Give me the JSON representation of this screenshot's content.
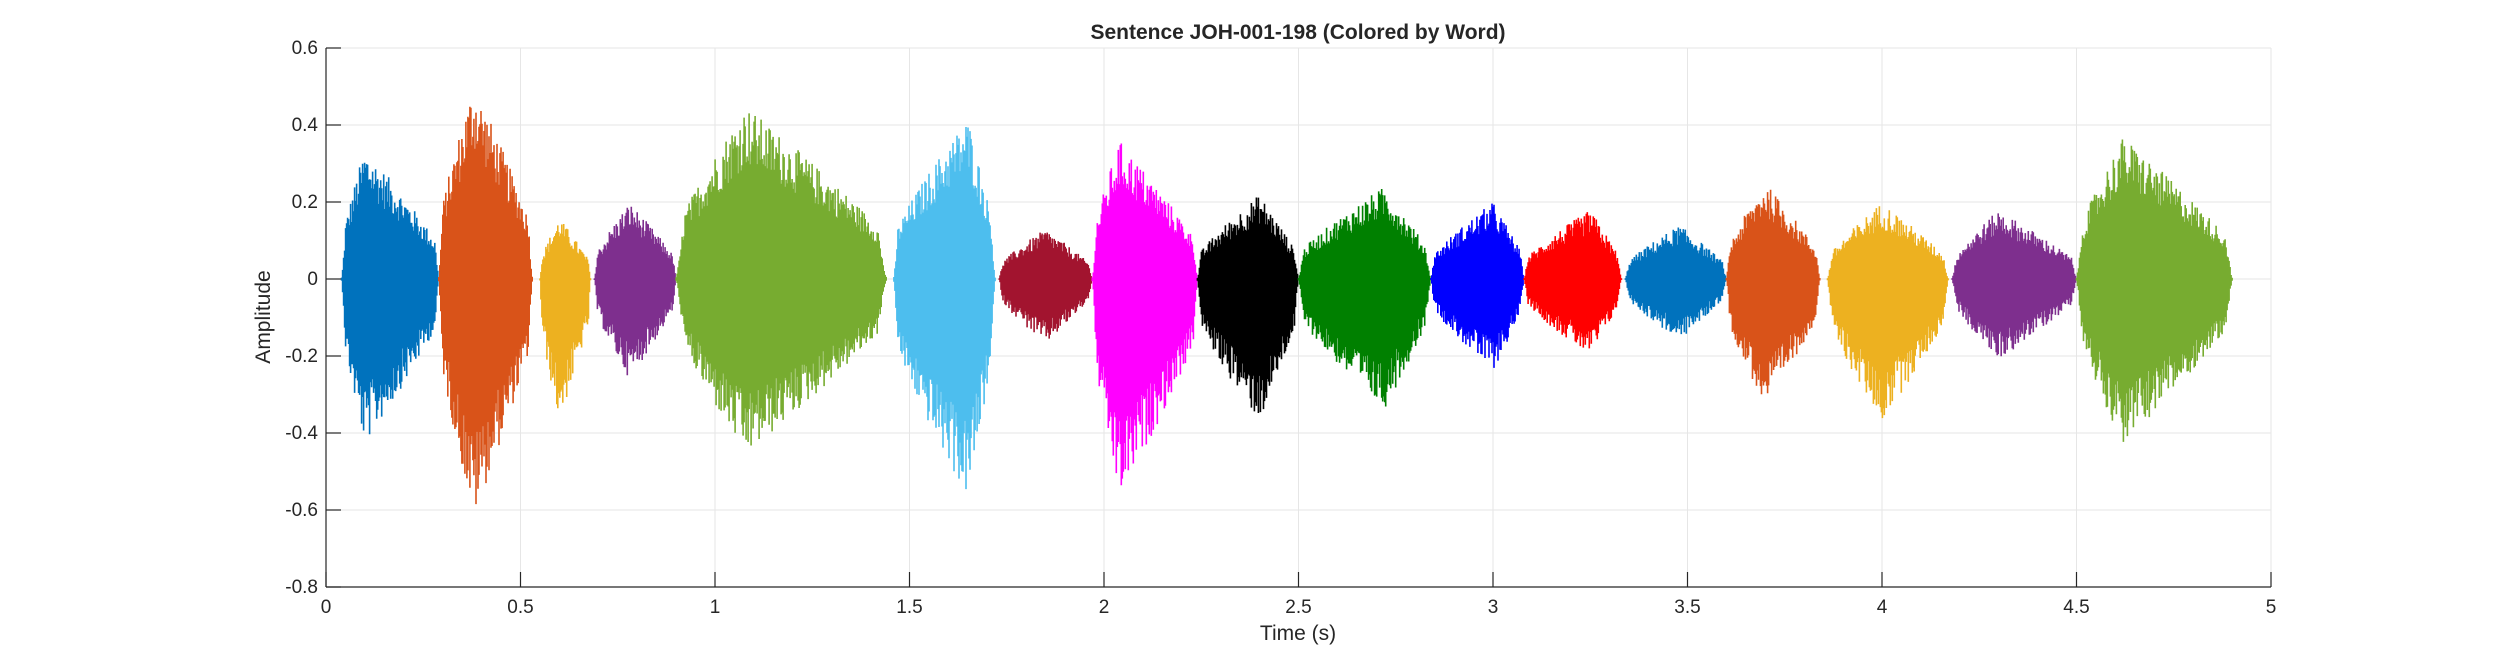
{
  "chart_data": {
    "type": "line",
    "title": "Sentence JOH-001-198 (Colored by Word)",
    "xlabel": "Time (s)",
    "ylabel": "Amplitude",
    "xlim": [
      0,
      5
    ],
    "ylim": [
      -0.8,
      0.6
    ],
    "xticks": [
      0,
      0.5,
      1,
      1.5,
      2,
      2.5,
      3,
      3.5,
      4,
      4.5,
      5
    ],
    "xtick_labels": [
      "0",
      "0.5",
      "1",
      "1.5",
      "2",
      "2.5",
      "3",
      "3.5",
      "4",
      "4.5",
      "5"
    ],
    "yticks": [
      -0.8,
      -0.6,
      -0.4,
      -0.2,
      0,
      0.2,
      0.4,
      0.6
    ],
    "ytick_labels": [
      "-0.8",
      "-0.6",
      "-0.4",
      "-0.2",
      "0",
      "0.2",
      "0.4",
      "0.6"
    ],
    "grid": true,
    "series": [
      {
        "color": "#0072BD",
        "start": 0.04,
        "end": 0.29,
        "peak_t": 0.1,
        "max": 0.34,
        "min": -0.43
      },
      {
        "color": "#D95319",
        "start": 0.29,
        "end": 0.53,
        "peak_t": 0.38,
        "max": 0.51,
        "min": -0.62
      },
      {
        "color": "#EDB120",
        "start": 0.55,
        "end": 0.68,
        "peak_t": 0.6,
        "max": 0.16,
        "min": -0.37
      },
      {
        "color": "#7E2F8E",
        "start": 0.69,
        "end": 0.9,
        "peak_t": 0.78,
        "max": 0.2,
        "min": -0.26
      },
      {
        "color": "#77AC30",
        "start": 0.9,
        "end": 1.44,
        "peak_t": 1.08,
        "max": 0.45,
        "min": -0.46
      },
      {
        "color": "#4DBEEE",
        "start": 1.46,
        "end": 1.72,
        "peak_t": 1.65,
        "max": 0.42,
        "min": -0.57
      },
      {
        "color": "#A2142F",
        "start": 1.73,
        "end": 1.97,
        "peak_t": 1.85,
        "max": 0.13,
        "min": -0.17
      },
      {
        "color": "#FF00FF",
        "start": 1.97,
        "end": 2.24,
        "peak_t": 2.04,
        "max": 0.36,
        "min": -0.57
      },
      {
        "color": "#000000",
        "start": 2.24,
        "end": 2.5,
        "peak_t": 2.4,
        "max": 0.22,
        "min": -0.37
      },
      {
        "color": "#008000",
        "start": 2.5,
        "end": 2.84,
        "peak_t": 2.72,
        "max": 0.24,
        "min": -0.34
      },
      {
        "color": "#0000FF",
        "start": 2.84,
        "end": 3.08,
        "peak_t": 3.0,
        "max": 0.2,
        "min": -0.24
      },
      {
        "color": "#FF0000",
        "start": 3.08,
        "end": 3.33,
        "peak_t": 3.25,
        "max": 0.18,
        "min": -0.2
      },
      {
        "color": "#0072BD",
        "start": 3.34,
        "end": 3.6,
        "peak_t": 3.48,
        "max": 0.14,
        "min": -0.16
      },
      {
        "color": "#D95319",
        "start": 3.6,
        "end": 3.84,
        "peak_t": 3.7,
        "max": 0.25,
        "min": -0.33
      },
      {
        "color": "#EDB120",
        "start": 3.86,
        "end": 4.17,
        "peak_t": 4.0,
        "max": 0.2,
        "min": -0.37
      },
      {
        "color": "#7E2F8E",
        "start": 4.18,
        "end": 4.5,
        "peak_t": 4.3,
        "max": 0.18,
        "min": -0.21
      },
      {
        "color": "#77AC30",
        "start": 4.5,
        "end": 4.9,
        "peak_t": 4.62,
        "max": 0.37,
        "min": -0.43
      }
    ]
  }
}
